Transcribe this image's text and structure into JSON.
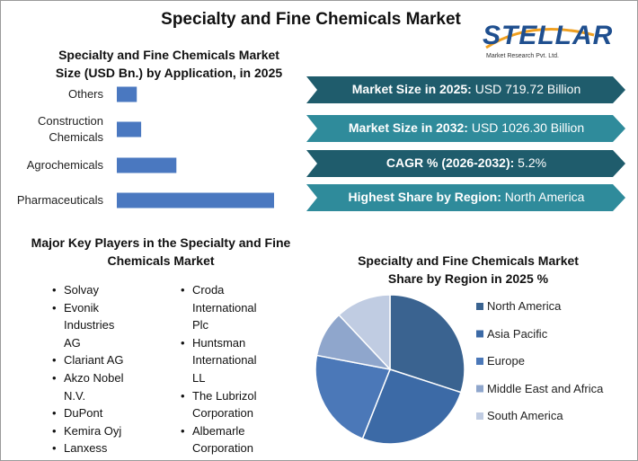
{
  "title": "Specialty and Fine Chemicals Market",
  "logo": {
    "name": "STELLAR",
    "tagline": "Market Research Pvt. Ltd."
  },
  "chart_data": [
    {
      "type": "bar",
      "orientation": "horizontal",
      "title": "Specialty and Fine Chemicals Market Size (USD Bn.) by Application, in 2025",
      "categories": [
        "Others",
        "Construction Chemicals",
        "Agrochemicals",
        "Pharmaceuticals"
      ],
      "values": [
        55,
        67,
        164,
        433
      ],
      "color": "#4a78c0"
    },
    {
      "type": "pie",
      "title": "Specialty and Fine Chemicals Market Share by Region in 2025 %",
      "categories": [
        "North America",
        "Asia Pacific",
        "Europe",
        "Middle East and Africa",
        "South America"
      ],
      "values": [
        30,
        26,
        22,
        10,
        12
      ],
      "colors": [
        "#3a6390",
        "#3c6aa6",
        "#4b78b8",
        "#8fa6cc",
        "#c0cce2"
      ]
    }
  ],
  "stats": [
    {
      "label": "Market Size in 2025:",
      "value": "USD 719.72 Billion"
    },
    {
      "label": "Market Size in 2032:",
      "value": "USD 1026.30 Billion"
    },
    {
      "label": "CAGR % (2026-2032):",
      "value": "5.2%"
    },
    {
      "label": "Highest Share by Region:",
      "value": "North America"
    }
  ],
  "players": {
    "title": "Major Key Players in the Specialty and Fine Chemicals Market",
    "columns": [
      [
        "Solvay",
        "Evonik Industries AG",
        "Clariant AG",
        "Akzo Nobel N.V.",
        "DuPont",
        "Kemira Oyj",
        "Lanxess"
      ],
      [
        "Croda International Plc",
        "Huntsman International LL",
        "The Lubrizol Corporation",
        "Albemarle Corporation"
      ]
    ]
  }
}
